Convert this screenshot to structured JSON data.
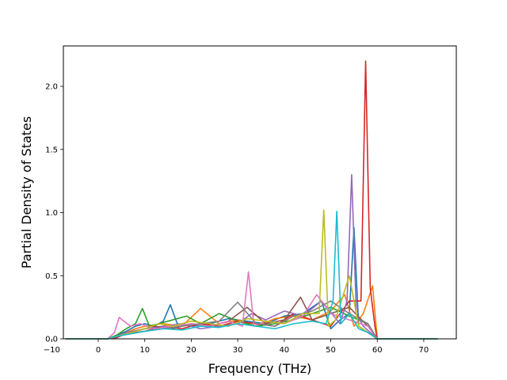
{
  "chart_data": {
    "type": "line",
    "title": "",
    "xlabel": "Frequency (THz)",
    "ylabel": "Partial Density of States",
    "xlim": [
      -7.5,
      77
    ],
    "ylim": [
      0,
      2.32
    ],
    "xticks": [
      -10,
      0,
      10,
      20,
      30,
      40,
      50,
      60,
      70
    ],
    "xtick_labels": [
      "−10",
      "0",
      "10",
      "20",
      "30",
      "40",
      "50",
      "60",
      "70"
    ],
    "yticks": [
      0.0,
      0.5,
      1.0,
      1.5,
      2.0
    ],
    "ytick_labels": [
      "0.0",
      "0.5",
      "1.0",
      "1.5",
      "2.0"
    ],
    "grid": false,
    "legend": "none",
    "series": [
      {
        "color": "#1f77b4",
        "x": [
          -7,
          2,
          4,
          6,
          8,
          10,
          12,
          14,
          15.5,
          17,
          20,
          24,
          28,
          32,
          36,
          40,
          44,
          48,
          50,
          52,
          54,
          55,
          56,
          58,
          60,
          73
        ],
        "values": [
          0,
          0,
          0.03,
          0.06,
          0.1,
          0.12,
          0.1,
          0.14,
          0.27,
          0.12,
          0.1,
          0.12,
          0.16,
          0.14,
          0.12,
          0.18,
          0.2,
          0.3,
          0.08,
          0.15,
          0.2,
          0.88,
          0.1,
          0.05,
          0,
          0
        ]
      },
      {
        "color": "#ff7f0e",
        "x": [
          -7,
          2,
          4,
          6,
          8,
          10,
          14,
          18,
          22,
          26,
          30,
          34,
          38,
          42,
          46,
          50,
          53,
          55,
          57,
          59,
          60,
          73
        ],
        "values": [
          0,
          0,
          0.02,
          0.05,
          0.08,
          0.1,
          0.12,
          0.1,
          0.24,
          0.12,
          0.15,
          0.1,
          0.16,
          0.18,
          0.15,
          0.22,
          0.35,
          0.1,
          0.2,
          0.42,
          0,
          0
        ]
      },
      {
        "color": "#2ca02c",
        "x": [
          -7,
          2,
          4,
          6,
          8,
          9.5,
          11,
          13,
          16,
          19,
          22,
          26,
          30,
          34,
          38,
          42,
          46,
          50,
          54,
          58,
          60,
          73
        ],
        "values": [
          0,
          0,
          0.03,
          0.08,
          0.12,
          0.24,
          0.1,
          0.12,
          0.15,
          0.18,
          0.12,
          0.2,
          0.14,
          0.1,
          0.12,
          0.15,
          0.2,
          0.25,
          0.18,
          0.12,
          0,
          0
        ]
      },
      {
        "color": "#d62728",
        "x": [
          -7,
          2,
          4,
          6,
          10,
          14,
          18,
          22,
          26,
          30,
          34,
          38,
          42,
          46,
          50,
          54,
          56.5,
          57.5,
          58.5,
          59.5,
          60,
          73
        ],
        "values": [
          0,
          0,
          0.01,
          0.04,
          0.06,
          0.1,
          0.08,
          0.12,
          0.1,
          0.14,
          0.12,
          0.1,
          0.2,
          0.15,
          0.1,
          0.3,
          0.3,
          2.2,
          0.4,
          0.1,
          0,
          0
        ]
      },
      {
        "color": "#9467bd",
        "x": [
          -7,
          2,
          4,
          6,
          10,
          14,
          18,
          22,
          26,
          30,
          33,
          36,
          40,
          44,
          48,
          52,
          53.5,
          54.5,
          55.5,
          57,
          60,
          73
        ],
        "values": [
          0,
          0,
          0.02,
          0.05,
          0.08,
          0.1,
          0.12,
          0.08,
          0.1,
          0.12,
          0.2,
          0.15,
          0.22,
          0.18,
          0.3,
          0.12,
          0.3,
          1.3,
          0.2,
          0.1,
          0,
          0
        ]
      },
      {
        "color": "#8c564b",
        "x": [
          -7,
          2,
          5,
          8,
          12,
          16,
          20,
          24,
          28,
          32,
          36,
          40,
          43.5,
          46,
          50,
          54,
          58,
          60,
          73
        ],
        "values": [
          0,
          0,
          0.03,
          0.06,
          0.1,
          0.08,
          0.12,
          0.1,
          0.14,
          0.25,
          0.12,
          0.15,
          0.33,
          0.15,
          0.2,
          0.25,
          0.1,
          0,
          0
        ]
      },
      {
        "color": "#e377c2",
        "x": [
          -7,
          2,
          3.5,
          4.5,
          5.5,
          7,
          9,
          12,
          16,
          20,
          24,
          28,
          31,
          32.3,
          33.5,
          36,
          40,
          44,
          47,
          50,
          54,
          58,
          60,
          73
        ],
        "values": [
          0,
          0,
          0.05,
          0.17,
          0.14,
          0.1,
          0.12,
          0.08,
          0.1,
          0.12,
          0.1,
          0.14,
          0.1,
          0.53,
          0.1,
          0.14,
          0.12,
          0.18,
          0.35,
          0.2,
          0.15,
          0.1,
          0,
          0
        ]
      },
      {
        "color": "#7f7f7f",
        "x": [
          -7,
          2,
          4,
          7,
          10,
          14,
          18,
          22,
          26,
          30,
          34,
          38,
          42,
          46,
          50,
          54,
          58,
          60,
          73
        ],
        "values": [
          0,
          0,
          0.02,
          0.04,
          0.06,
          0.08,
          0.1,
          0.12,
          0.14,
          0.29,
          0.12,
          0.1,
          0.18,
          0.22,
          0.3,
          0.2,
          0.12,
          0,
          0
        ]
      },
      {
        "color": "#bcbd22",
        "x": [
          -7,
          2,
          4,
          7,
          10,
          13,
          16,
          20,
          24,
          28,
          32,
          36,
          40,
          44,
          47.5,
          48.5,
          49.5,
          51,
          54,
          56,
          58,
          60,
          73
        ],
        "values": [
          0,
          0,
          0.02,
          0.05,
          0.08,
          0.12,
          0.1,
          0.14,
          0.12,
          0.1,
          0.16,
          0.14,
          0.12,
          0.2,
          0.2,
          1.02,
          0.1,
          0.15,
          0.5,
          0.1,
          0.05,
          0,
          0
        ]
      },
      {
        "color": "#17becf",
        "x": [
          -7,
          2,
          4,
          7,
          10,
          14,
          18,
          22,
          26,
          30,
          34,
          38,
          42,
          46,
          49,
          50.5,
          51.3,
          52.2,
          54,
          56,
          58,
          60,
          73
        ],
        "values": [
          0,
          0,
          0.02,
          0.04,
          0.06,
          0.08,
          0.07,
          0.1,
          0.09,
          0.12,
          0.1,
          0.08,
          0.12,
          0.14,
          0.12,
          0.3,
          1.01,
          0.12,
          0.2,
          0.08,
          0.05,
          0,
          0
        ]
      }
    ]
  }
}
